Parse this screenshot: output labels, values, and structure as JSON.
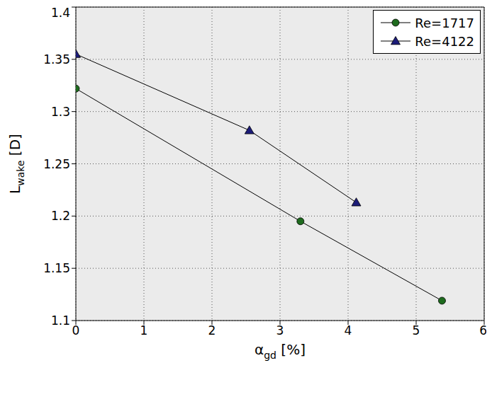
{
  "chart_data": {
    "type": "line",
    "x_label": {
      "text": "α",
      "subscript": "gd",
      "unit": "[%]"
    },
    "y_label": {
      "text": "L",
      "subscript": "wake",
      "unit": "[D]"
    },
    "series": [
      {
        "name": "Re=1717",
        "color": "#1e6b1e",
        "marker": "circle",
        "x": [
          0,
          3.3,
          5.38
        ],
        "values": [
          1.322,
          1.195,
          1.119
        ]
      },
      {
        "name": "Re=4122",
        "color": "#1c1c78",
        "marker": "triangle",
        "x": [
          0,
          2.55,
          4.12
        ],
        "values": [
          1.355,
          1.282,
          1.213
        ]
      }
    ],
    "xlim": [
      0,
      6
    ],
    "xticks": [
      0,
      1,
      2,
      3,
      4,
      5,
      6
    ],
    "ylim": [
      1.1,
      1.4
    ],
    "yticks": [
      1.1,
      1.15,
      1.2,
      1.25,
      1.3,
      1.35,
      1.4
    ],
    "grid": true,
    "legend": "upper right"
  }
}
